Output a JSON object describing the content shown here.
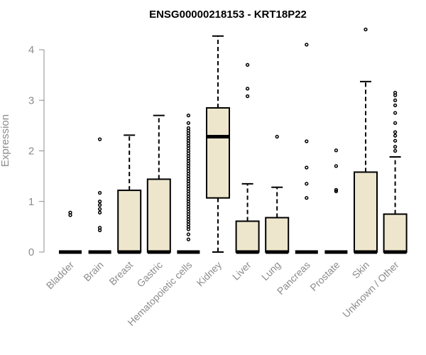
{
  "chart_data": {
    "type": "boxplot",
    "title": "ENSG00000218153 - KRT18P22",
    "xlabel": "",
    "ylabel": "Expression",
    "ylim": [
      0,
      4.5
    ],
    "yticks": [
      0,
      1,
      2,
      3,
      4
    ],
    "categories": [
      "Bladder",
      "Brain",
      "Breast",
      "Gastric",
      "Hematopoietic cells",
      "Kidney",
      "Liver",
      "Lung",
      "Pancreas",
      "Prostate",
      "Skin",
      "Unknown / Other"
    ],
    "boxes": [
      {
        "q1": 0,
        "median": 0,
        "q3": 0,
        "whisker_low": 0,
        "whisker_high": 0,
        "outliers": [
          0.73,
          0.78
        ]
      },
      {
        "q1": 0,
        "median": 0,
        "q3": 0,
        "whisker_low": 0,
        "whisker_high": 0,
        "outliers": [
          0.43,
          0.48,
          0.78,
          0.85,
          0.93,
          1.0,
          1.17,
          2.23
        ]
      },
      {
        "q1": 0,
        "median": 0,
        "q3": 1.22,
        "whisker_low": 0,
        "whisker_high": 2.31,
        "outliers": []
      },
      {
        "q1": 0,
        "median": 0,
        "q3": 1.44,
        "whisker_low": 0,
        "whisker_high": 2.7,
        "outliers": []
      },
      {
        "q1": 0,
        "median": 0,
        "q3": 0,
        "whisker_low": 0,
        "whisker_high": 0,
        "outliers": [
          0.25,
          0.35,
          0.45,
          0.5,
          0.55,
          0.6,
          0.65,
          0.7,
          0.75,
          0.8,
          0.85,
          0.9,
          0.95,
          1.0,
          1.05,
          1.1,
          1.15,
          1.2,
          1.25,
          1.3,
          1.35,
          1.4,
          1.45,
          1.5,
          1.55,
          1.6,
          1.65,
          1.7,
          1.75,
          1.8,
          1.85,
          1.9,
          1.95,
          2.0,
          2.05,
          2.1,
          2.15,
          2.2,
          2.25,
          2.3,
          2.35,
          2.4,
          2.45,
          2.55,
          2.7
        ]
      },
      {
        "q1": 1.07,
        "median": 2.28,
        "q3": 2.85,
        "whisker_low": 0,
        "whisker_high": 4.27,
        "outliers": []
      },
      {
        "q1": 0,
        "median": 0,
        "q3": 0.61,
        "whisker_low": 0,
        "whisker_high": 1.35,
        "outliers": [
          3.08,
          3.23,
          3.7
        ]
      },
      {
        "q1": 0,
        "median": 0,
        "q3": 0.68,
        "whisker_low": 0,
        "whisker_high": 1.28,
        "outliers": [
          2.28
        ]
      },
      {
        "q1": 0,
        "median": 0,
        "q3": 0,
        "whisker_low": 0,
        "whisker_high": 0,
        "outliers": [
          1.07,
          1.35,
          1.67,
          2.19,
          4.1
        ]
      },
      {
        "q1": 0,
        "median": 0,
        "q3": 0,
        "whisker_low": 0,
        "whisker_high": 0,
        "outliers": [
          1.2,
          1.23,
          1.7,
          2.01
        ]
      },
      {
        "q1": 0,
        "median": 0,
        "q3": 1.58,
        "whisker_low": 0,
        "whisker_high": 3.37,
        "outliers": [
          4.4
        ]
      },
      {
        "q1": 0,
        "median": 0,
        "q3": 0.75,
        "whisker_low": 0,
        "whisker_high": 1.88,
        "outliers": [
          2.0,
          2.08,
          2.2,
          2.3,
          2.37,
          2.55,
          2.75,
          2.9,
          3.0,
          3.1,
          3.15
        ]
      }
    ],
    "colors": {
      "box_fill": "#ede6cc",
      "stroke": "#000000",
      "axis": "#8c8c8c"
    }
  }
}
